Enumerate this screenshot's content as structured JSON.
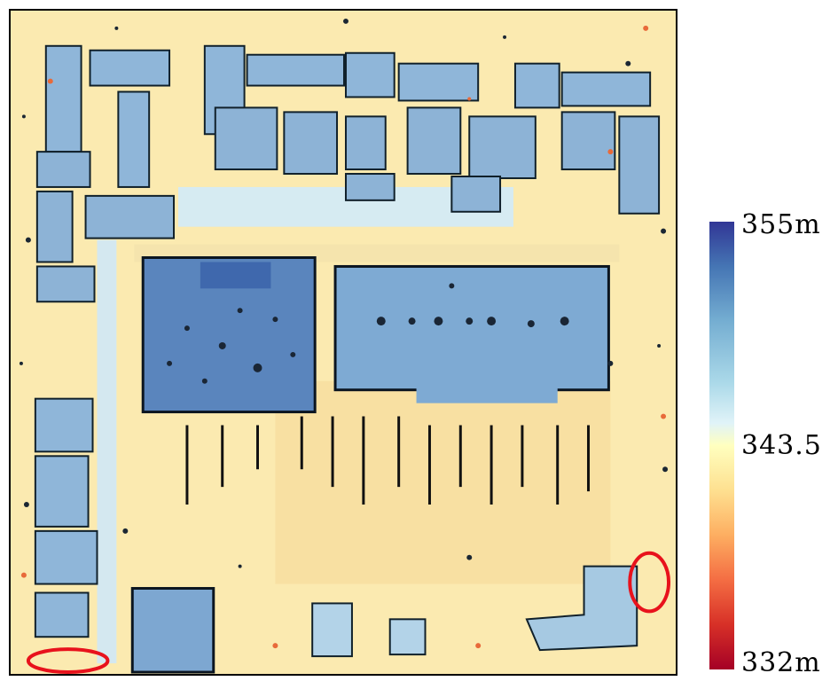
{
  "map": {
    "colormap": [
      "#313695",
      "#4575b4",
      "#74add1",
      "#abd9e9",
      "#e0f3f8",
      "#ffffbf",
      "#fee090",
      "#fdae61",
      "#f46d43",
      "#d73027",
      "#a50026"
    ],
    "highlight_color": "#e8121c"
  },
  "colorbar": {
    "max_label": "355m",
    "mid_label": "343.5",
    "min_label": "332m"
  }
}
